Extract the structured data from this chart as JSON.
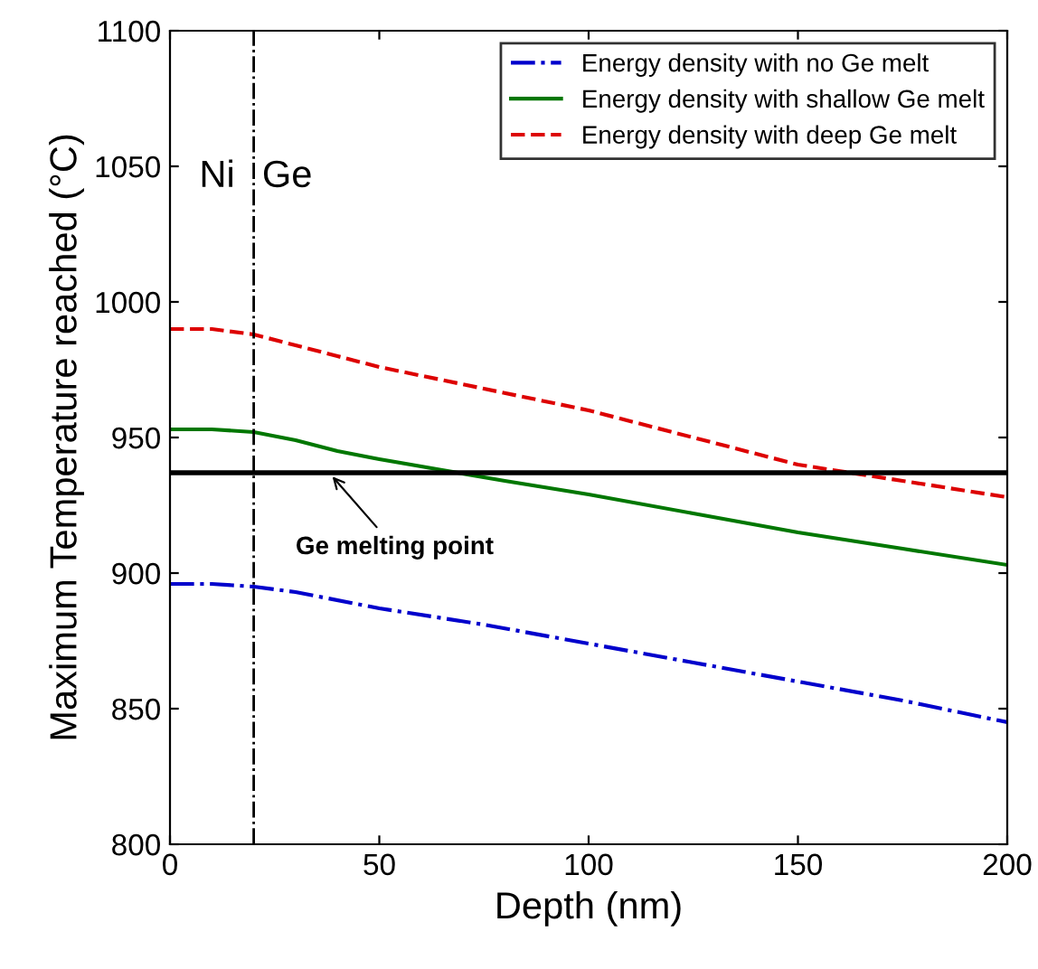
{
  "chart_data": {
    "type": "line",
    "xlabel": "Depth (nm)",
    "ylabel": "Maximum Temperature reached (°C)",
    "xlim": [
      0,
      200
    ],
    "ylim": [
      800,
      1100
    ],
    "xticks": [
      0,
      50,
      100,
      150,
      200
    ],
    "yticks": [
      800,
      850,
      900,
      950,
      1000,
      1050,
      1100
    ],
    "legend": "top right",
    "grid": false,
    "series": [
      {
        "name": "Energy density with no Ge melt",
        "color": "#0000cc",
        "line_style": "dashdot",
        "x": [
          0,
          10,
          20,
          30,
          50,
          75,
          100,
          125,
          150,
          175,
          200
        ],
        "values": [
          896,
          896,
          895,
          893,
          887,
          881,
          874,
          867,
          860,
          853,
          845
        ]
      },
      {
        "name": "Energy density with shallow Ge melt",
        "color": "#007700",
        "line_style": "solid",
        "x": [
          0,
          10,
          20,
          30,
          40,
          50,
          65,
          80,
          100,
          125,
          150,
          175,
          200
        ],
        "values": [
          953,
          953,
          952,
          949,
          945,
          942,
          938,
          934,
          929,
          922,
          915,
          909,
          903
        ]
      },
      {
        "name": "Energy density with deep Ge melt",
        "color": "#dd0000",
        "line_style": "dashed",
        "x": [
          0,
          10,
          20,
          30,
          40,
          50,
          75,
          100,
          125,
          150,
          175,
          200
        ],
        "values": [
          990,
          990,
          988,
          984,
          980,
          976,
          968,
          960,
          950,
          940,
          934,
          928
        ]
      }
    ],
    "ref_lines": [
      {
        "axis": "y",
        "value": 937,
        "label": "Ge melting point",
        "color": "#000000",
        "line_style": "solid"
      },
      {
        "axis": "x",
        "value": 20,
        "label": null,
        "color": "#000000",
        "line_style": "dashdot"
      }
    ],
    "annotations": [
      "Ni",
      "Ge"
    ]
  }
}
